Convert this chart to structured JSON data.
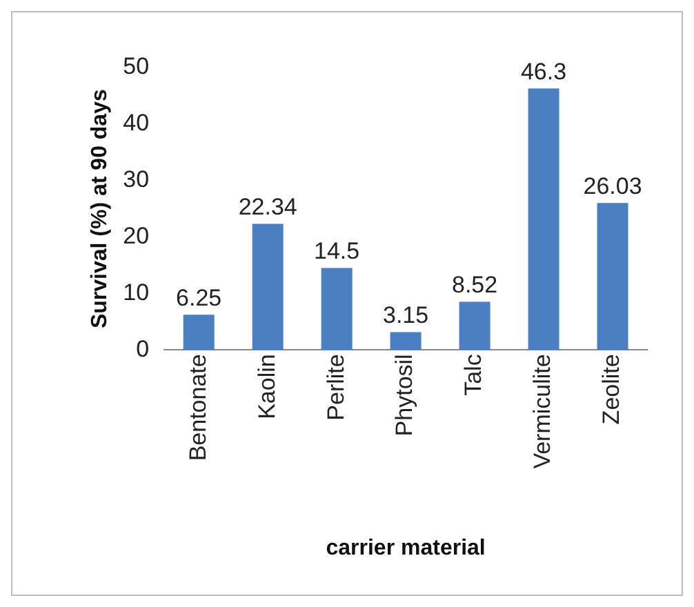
{
  "chart_data": {
    "type": "bar",
    "xlabel": "carrier material",
    "ylabel": "Survival (%) at 90 days",
    "categories": [
      "Bentonate",
      "Kaolin",
      "Perlite",
      "Phytosil",
      "Talc",
      "Vermiculite",
      "Zeolite"
    ],
    "values": [
      6.25,
      22.34,
      14.5,
      3.15,
      8.52,
      46.3,
      26.03
    ],
    "color": "#4a7fc1",
    "ylim": [
      0,
      50
    ],
    "yticks": [
      0,
      10,
      20,
      30,
      40,
      50
    ],
    "grid": false,
    "legend": false,
    "data_labels": true
  }
}
